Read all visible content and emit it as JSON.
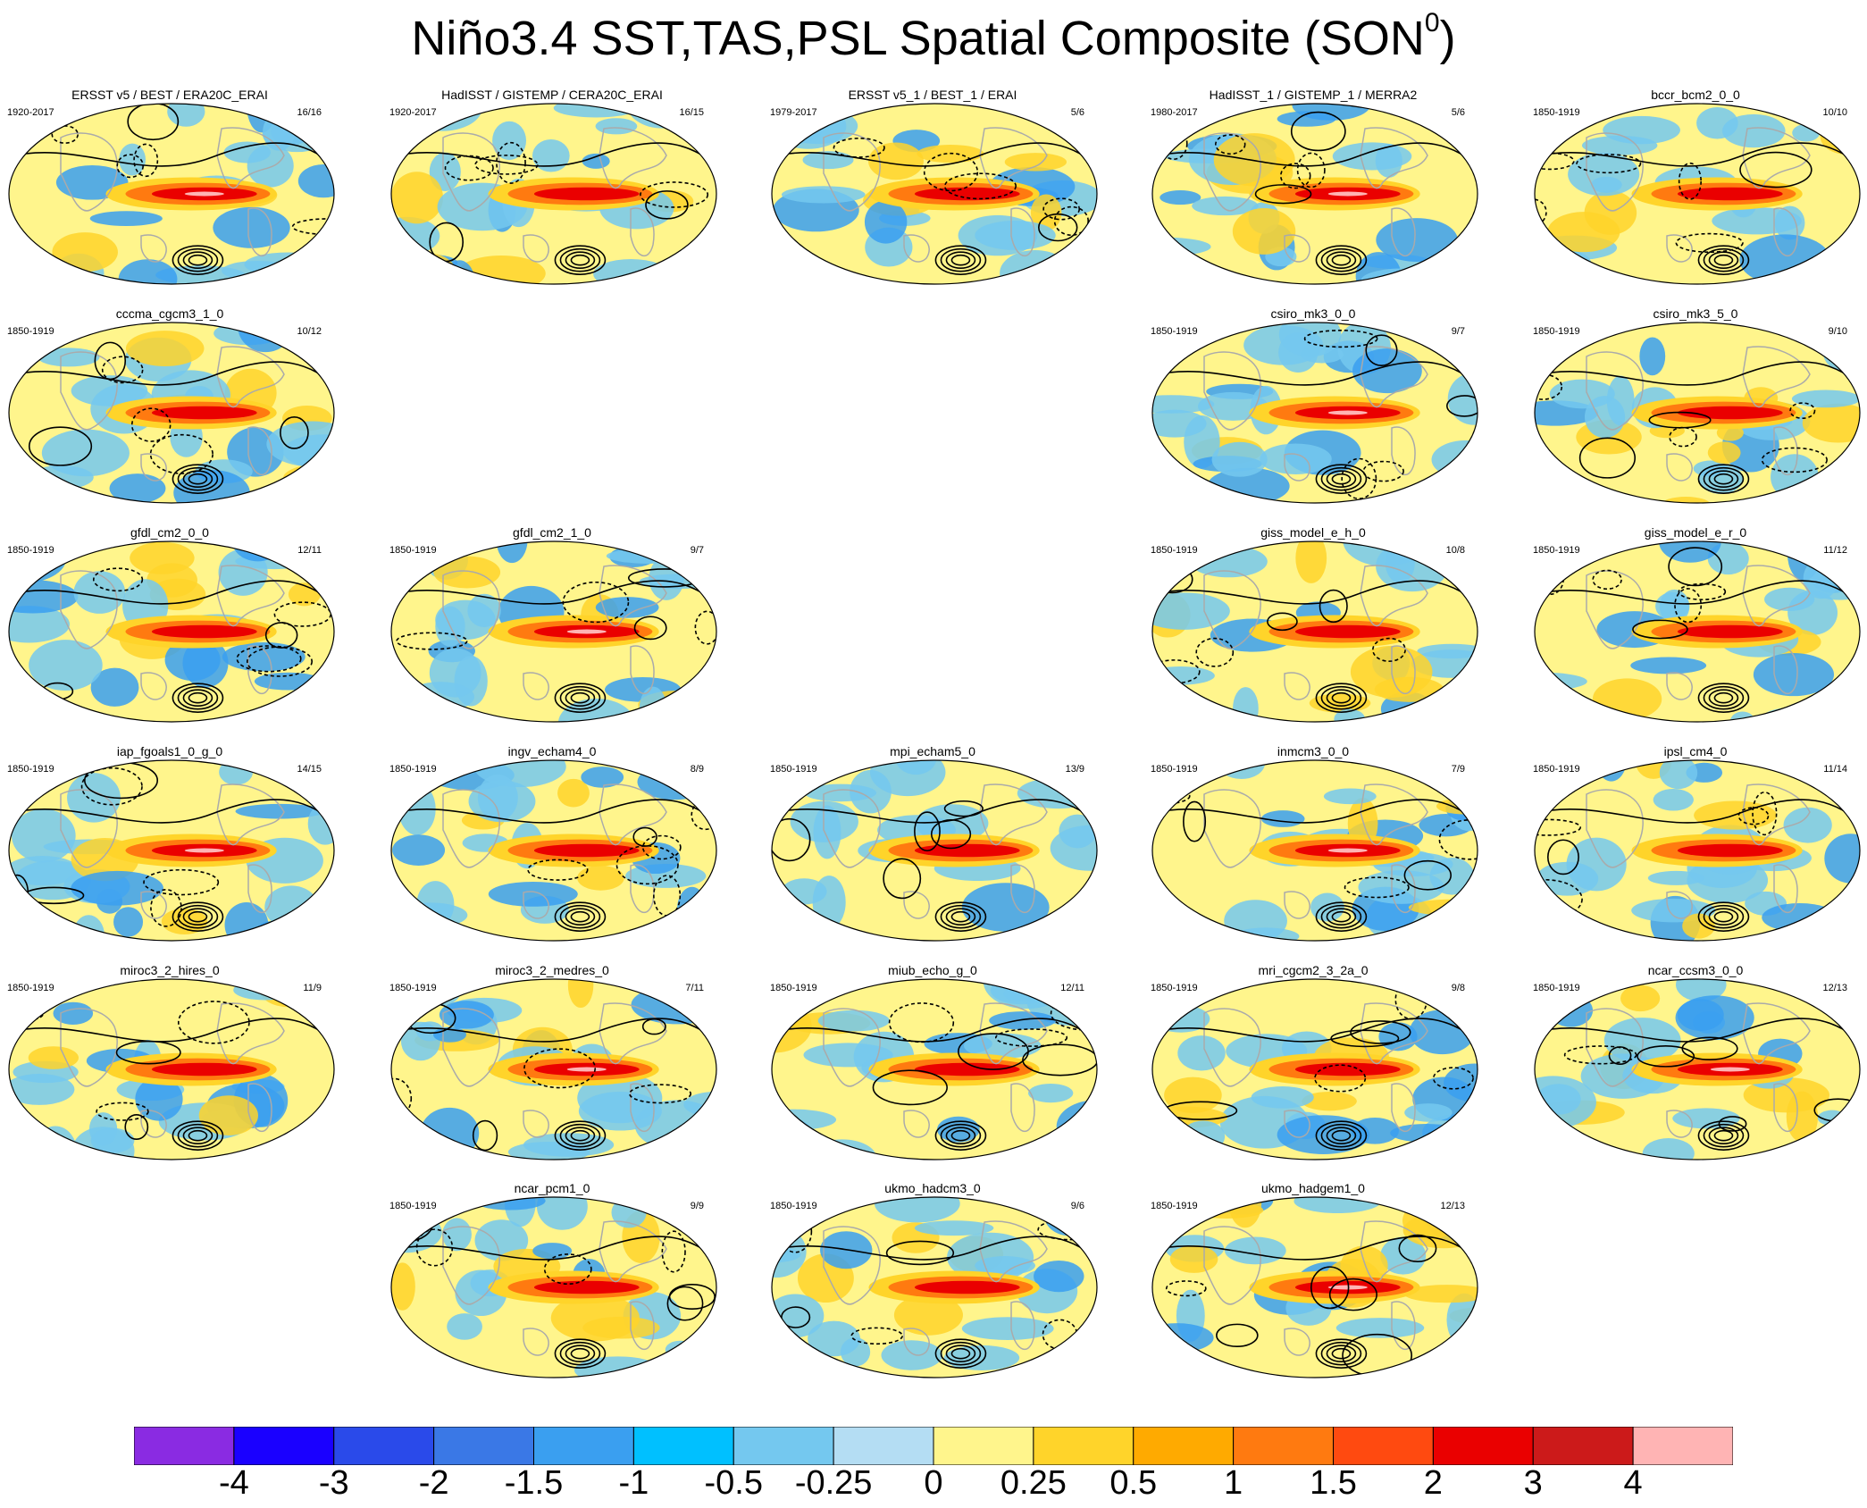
{
  "title": {
    "main": "Niño3.4 SST,TAS,PSL Spatial Composite (SON",
    "sup": "0",
    "close": ")"
  },
  "panels": [
    {
      "title": "ERSST v5 / BEST / ERA20C_ERAI",
      "period": "1920-2017",
      "count": "16/16",
      "row": 0,
      "col": 0
    },
    {
      "title": "HadISST / GISTEMP / CERA20C_ERAI",
      "period": "1920-2017",
      "count": "16/15",
      "row": 0,
      "col": 1
    },
    {
      "title": "ERSST v5_1 / BEST_1 / ERAI",
      "period": "1979-2017",
      "count": "5/6",
      "row": 0,
      "col": 2
    },
    {
      "title": "HadISST_1 / GISTEMP_1 / MERRA2",
      "period": "1980-2017",
      "count": "5/6",
      "row": 0,
      "col": 3
    },
    {
      "title": "bccr_bcm2_0_0",
      "period": "1850-1919",
      "count": "10/10",
      "row": 0,
      "col": 4
    },
    {
      "title": "cccma_cgcm3_1_0",
      "period": "1850-1919",
      "count": "10/12",
      "row": 1,
      "col": 0
    },
    {
      "title": "csiro_mk3_0_0",
      "period": "1850-1919",
      "count": "9/7",
      "row": 1,
      "col": 3
    },
    {
      "title": "csiro_mk3_5_0",
      "period": "1850-1919",
      "count": "9/10",
      "row": 1,
      "col": 4
    },
    {
      "title": "gfdl_cm2_0_0",
      "period": "1850-1919",
      "count": "12/11",
      "row": 2,
      "col": 0
    },
    {
      "title": "gfdl_cm2_1_0",
      "period": "1850-1919",
      "count": "9/7",
      "row": 2,
      "col": 1
    },
    {
      "title": "giss_model_e_h_0",
      "period": "1850-1919",
      "count": "10/8",
      "row": 2,
      "col": 3
    },
    {
      "title": "giss_model_e_r_0",
      "period": "1850-1919",
      "count": "11/12",
      "row": 2,
      "col": 4
    },
    {
      "title": "iap_fgoals1_0_g_0",
      "period": "1850-1919",
      "count": "14/15",
      "row": 3,
      "col": 0
    },
    {
      "title": "ingv_echam4_0",
      "period": "1850-1919",
      "count": "8/9",
      "row": 3,
      "col": 1
    },
    {
      "title": "mpi_echam5_0",
      "period": "1850-1919",
      "count": "13/9",
      "row": 3,
      "col": 2
    },
    {
      "title": "inmcm3_0_0",
      "period": "1850-1919",
      "count": "7/9",
      "row": 3,
      "col": 3
    },
    {
      "title": "ipsl_cm4_0",
      "period": "1850-1919",
      "count": "11/14",
      "row": 3,
      "col": 4
    },
    {
      "title": "miroc3_2_hires_0",
      "period": "1850-1919",
      "count": "11/9",
      "row": 4,
      "col": 0
    },
    {
      "title": "miroc3_2_medres_0",
      "period": "1850-1919",
      "count": "7/11",
      "row": 4,
      "col": 1
    },
    {
      "title": "miub_echo_g_0",
      "period": "1850-1919",
      "count": "12/11",
      "row": 4,
      "col": 2
    },
    {
      "title": "mri_cgcm2_3_2a_0",
      "period": "1850-1919",
      "count": "9/8",
      "row": 4,
      "col": 3
    },
    {
      "title": "ncar_ccsm3_0_0",
      "period": "1850-1919",
      "count": "12/13",
      "row": 4,
      "col": 4
    },
    {
      "title": "ncar_pcm1_0",
      "period": "1850-1919",
      "count": "9/9",
      "row": 5,
      "col": 1
    },
    {
      "title": "ukmo_hadcm3_0",
      "period": "1850-1919",
      "count": "9/6",
      "row": 5,
      "col": 2
    },
    {
      "title": "ukmo_hadgem1_0",
      "period": "1850-1919",
      "count": "12/13",
      "row": 5,
      "col": 3
    }
  ],
  "colorbar": {
    "colors": [
      "#8a2be2",
      "#1a00ff",
      "#2a4aea",
      "#3a78e6",
      "#3a9ff0",
      "#00c0ff",
      "#74c8ef",
      "#b4ddf3",
      "#fff58c",
      "#ffd42a",
      "#ffaa00",
      "#ff7a10",
      "#ff4a10",
      "#ea0000",
      "#cc1a1a",
      "#ffb4b4"
    ],
    "labels": [
      "-4",
      "-3",
      "-2",
      "-1.5",
      "-1",
      "-0.5",
      "-0.25",
      "0",
      "0.25",
      "0.5",
      "1",
      "1.5",
      "2",
      "3",
      "4"
    ]
  },
  "map_colors": {
    "ocean_base": "#fff58c",
    "warm_tongue": "#ff7a10",
    "warm_core": "#ea0000",
    "warm_peak": "#ffb4b4",
    "cool": "#74c8ef",
    "cool_deep": "#3a9ff0",
    "land_warm": "#ffd42a",
    "contour": "#000000",
    "coast": "#aaaaaa"
  }
}
